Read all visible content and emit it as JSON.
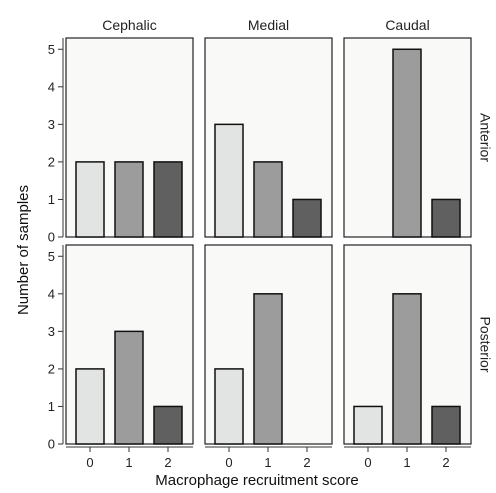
{
  "chart_data": {
    "type": "bar",
    "xlabel": "Macrophage recruitment score",
    "ylabel": "Number of samples",
    "categories": [
      "0",
      "1",
      "2"
    ],
    "yticks": [
      "0",
      "1",
      "2",
      "3",
      "4",
      "5"
    ],
    "ylim": [
      0,
      5.3
    ],
    "columns": [
      "Cephalic",
      "Medial",
      "Caudal"
    ],
    "rows": [
      "Anterior",
      "Posterior"
    ],
    "colors": {
      "score_0": "#e2e3e3",
      "score_1": "#9c9c9c",
      "score_2": "#606060",
      "panel_bg": "#f9f9f7",
      "border": "#222222"
    },
    "grid": false,
    "panels": [
      {
        "row": "Anterior",
        "column": "Cephalic",
        "values": [
          2,
          2,
          2
        ]
      },
      {
        "row": "Anterior",
        "column": "Medial",
        "values": [
          3,
          2,
          1
        ]
      },
      {
        "row": "Anterior",
        "column": "Caudal",
        "values": [
          0,
          5,
          1
        ]
      },
      {
        "row": "Posterior",
        "column": "Cephalic",
        "values": [
          2,
          3,
          1
        ]
      },
      {
        "row": "Posterior",
        "column": "Medial",
        "values": [
          2,
          4,
          0
        ]
      },
      {
        "row": "Posterior",
        "column": "Caudal",
        "values": [
          1,
          4,
          1
        ]
      }
    ]
  }
}
